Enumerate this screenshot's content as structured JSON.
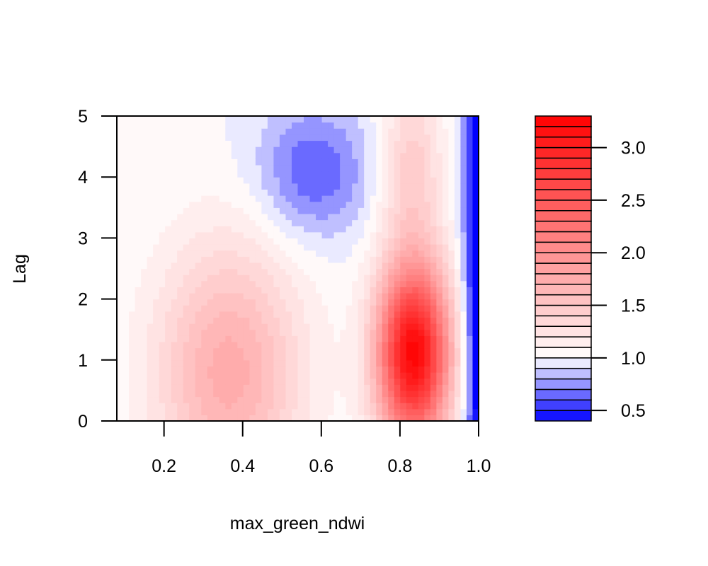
{
  "chart_data": {
    "type": "heatmap",
    "title": "",
    "xlabel": "max_green_ndwi",
    "ylabel": "Lag",
    "xlim": [
      0.08,
      1.0
    ],
    "ylim": [
      0,
      5
    ],
    "x_ticks": [
      0.2,
      0.4,
      0.6,
      0.8,
      1.0
    ],
    "x_tick_labels": [
      "0.2",
      "0.4",
      "0.6",
      "0.8",
      "1.0"
    ],
    "y_ticks": [
      0,
      1,
      2,
      3,
      4,
      5
    ],
    "y_tick_labels": [
      "0",
      "1",
      "2",
      "3",
      "4",
      "5"
    ],
    "z_range": [
      0.4,
      3.3
    ],
    "colorbar": {
      "ticks": [
        0.5,
        1.0,
        1.5,
        2.0,
        2.5,
        3.0
      ],
      "tick_labels": [
        "0.5",
        "1.0",
        "1.5",
        "2.0",
        "2.5",
        "3.0"
      ],
      "low_color": "#0000ff",
      "mid_color": "#ffffff",
      "high_color": "#ff0000",
      "mid_value": 1.0
    },
    "features": [
      {
        "x": 0.365,
        "y": 0.8,
        "z": 0.75,
        "sx": 0.13,
        "sy": 1.5
      },
      {
        "x": 0.835,
        "y": 1.1,
        "z": 2.25,
        "sx": 0.065,
        "sy": 1.05
      },
      {
        "x": 0.83,
        "y": 4.2,
        "z": 0.45,
        "sx": 0.055,
        "sy": 1.0
      },
      {
        "x": 0.58,
        "y": 4.1,
        "z": -0.4,
        "sx": 0.1,
        "sy": 0.75
      },
      {
        "x": 1.02,
        "y": 2.5,
        "z": -1.1,
        "sx": 0.035,
        "sy": 4.0
      }
    ]
  }
}
